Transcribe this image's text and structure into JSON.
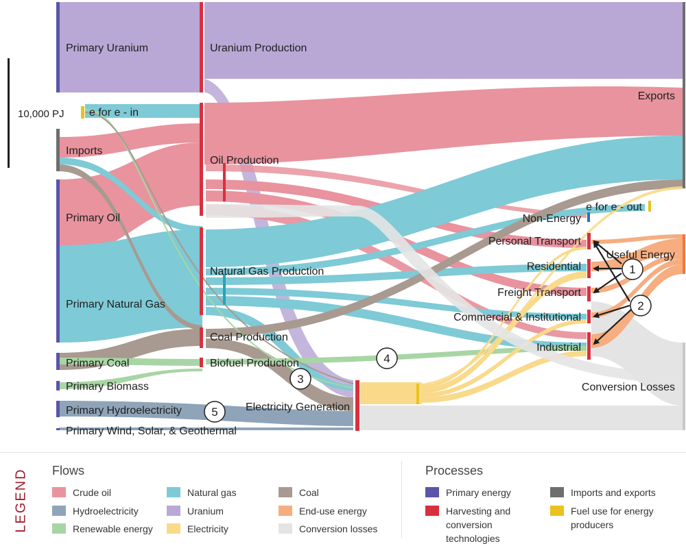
{
  "scale_label": "10,000 PJ",
  "nodes": {
    "primary_uranium": "Primary Uranium",
    "e_for_e_in": "e for e - in",
    "imports": "Imports",
    "primary_oil": "Primary Oil",
    "primary_natural_gas": "Primary Natural Gas",
    "primary_coal": "Primary Coal",
    "primary_biomass": "Primary Biomass",
    "primary_hydro": "Primary Hydroelectricity",
    "primary_wind": "Primary Wind, Solar, & Geothermal",
    "uranium_production": "Uranium Production",
    "oil_production": "Oil Production",
    "natural_gas_production": "Natural Gas Production",
    "coal_production": "Coal Production",
    "biofuel_production": "Biofuel Production",
    "electricity_generation": "Electricity Generation",
    "exports": "Exports",
    "e_for_e_out": "e for e - out",
    "non_energy": "Non-Energy",
    "personal_transport": "Personal Transport",
    "residential": "Residential",
    "freight_transport": "Freight Transport",
    "commercial": "Commercial & Institutional",
    "industrial": "Industrial",
    "useful_energy": "Useful Energy",
    "conversion_losses": "Conversion Losses"
  },
  "markers": [
    "1",
    "2",
    "3",
    "4",
    "5"
  ],
  "colors": {
    "crude_oil": "#e8939e",
    "hydro": "#8fa4b8",
    "renewable": "#a8d5a4",
    "natural_gas": "#7ecad6",
    "uranium": "#b9a8d6",
    "electricity": "#f9d98a",
    "coal": "#a89a90",
    "end_use": "#f6ad80",
    "losses": "#e4e4e4",
    "primary": "#5a55a8",
    "harvesting": "#d8303e",
    "imports_exports": "#6e6e6e",
    "fuel_use": "#e9c21e"
  },
  "legend": {
    "title": "LEGEND",
    "flows_heading": "Flows",
    "processes_heading": "Processes",
    "flows": [
      {
        "label": "Crude oil",
        "color": "#e8939e"
      },
      {
        "label": "Hydroelectricity",
        "color": "#8fa4b8"
      },
      {
        "label": "Renewable energy",
        "color": "#a8d5a4"
      },
      {
        "label": "Natural gas",
        "color": "#7ecad6"
      },
      {
        "label": "Uranium",
        "color": "#b9a8d6"
      },
      {
        "label": "Electricity",
        "color": "#f9d98a"
      },
      {
        "label": "Coal",
        "color": "#a89a90"
      },
      {
        "label": "End-use energy",
        "color": "#f6ad80"
      },
      {
        "label": "Conversion losses",
        "color": "#e4e4e4"
      }
    ],
    "processes": [
      {
        "label": "Primary energy",
        "color": "#5a55a8"
      },
      {
        "label": "Harvesting and conversion technologies",
        "color": "#d8303e"
      },
      {
        "label": "Imports and exports",
        "color": "#6e6e6e"
      },
      {
        "label": "Fuel use for energy producers",
        "color": "#e9c21e"
      }
    ]
  }
}
